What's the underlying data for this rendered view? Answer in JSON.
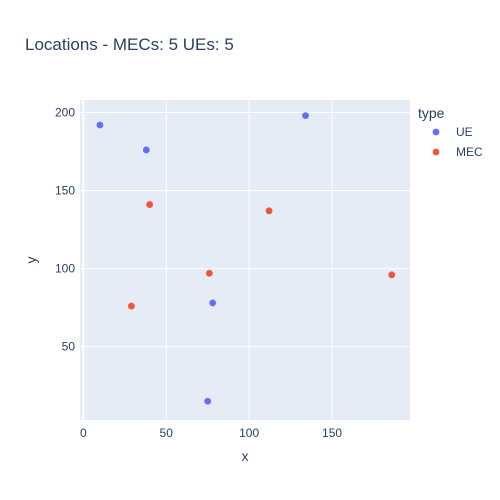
{
  "chart_data": {
    "type": "scatter",
    "title": "Locations - MECs: 5 UEs: 5",
    "xlabel": "x",
    "ylabel": "y",
    "xlim": [
      -2,
      197
    ],
    "ylim": [
      3,
      208
    ],
    "xticks": [
      0,
      50,
      100,
      150
    ],
    "yticks": [
      50,
      100,
      150,
      200
    ],
    "grid": true,
    "legend": {
      "title": "type",
      "placement": "top-right-outside"
    },
    "series": [
      {
        "name": "UE",
        "color": "#636efa",
        "points": [
          {
            "x": 10,
            "y": 192
          },
          {
            "x": 38,
            "y": 176
          },
          {
            "x": 134,
            "y": 198
          },
          {
            "x": 78,
            "y": 78
          },
          {
            "x": 75,
            "y": 15
          }
        ]
      },
      {
        "name": "MEC",
        "color": "#ef553b",
        "points": [
          {
            "x": 40,
            "y": 141
          },
          {
            "x": 112,
            "y": 137
          },
          {
            "x": 76,
            "y": 97
          },
          {
            "x": 29,
            "y": 76
          },
          {
            "x": 186,
            "y": 96
          }
        ]
      }
    ]
  }
}
